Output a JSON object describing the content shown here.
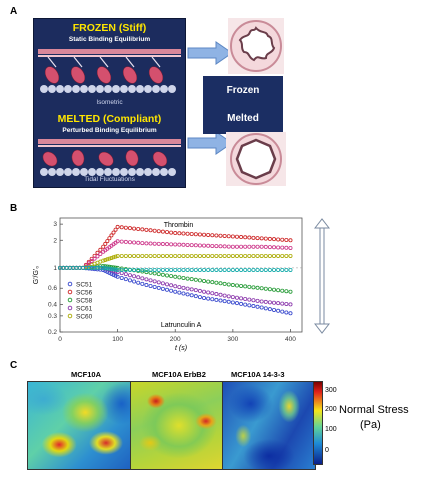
{
  "panels": {
    "a": "A",
    "b": "B",
    "c": "C"
  },
  "panelA": {
    "frozen_title": "FROZEN (Stiff)",
    "frozen_subtitle": "Static Binding Equilibrium",
    "frozen_caption": "Isometric",
    "melted_title": "MELTED (Compliant)",
    "melted_subtitle": "Perturbed Binding Equilibrium",
    "melted_caption": "Tidal Fluctuations",
    "frozen_box": "Frozen",
    "melted_box": "Melted",
    "colors": {
      "panel_bg": "#1c2c5e",
      "title": "#ffe600",
      "arrow": "#8fb3e4"
    }
  },
  "chart_data": {
    "type": "scatter",
    "xlabel": "t (s)",
    "ylabel": "G'/G'₀",
    "xlim": [
      0,
      420
    ],
    "ylim": [
      0.2,
      3.5
    ],
    "log_y": true,
    "xticks": [
      0,
      100,
      200,
      300,
      400
    ],
    "yticks": [
      0.2,
      0.3,
      0.4,
      0.6,
      1,
      2,
      3
    ],
    "annotations": [
      "Thrombin",
      "Latrunculin A"
    ],
    "legend_placement": "bottom-left",
    "series": [
      {
        "name": "SC51",
        "color": "#3344cc",
        "x": [
          0,
          40,
          75,
          100,
          150,
          200,
          250,
          300,
          350,
          400
        ],
        "y": [
          1.0,
          1.0,
          0.95,
          0.8,
          0.65,
          0.55,
          0.47,
          0.42,
          0.37,
          0.32
        ]
      },
      {
        "name": "SC56",
        "color": "#cc2222",
        "x": [
          0,
          40,
          75,
          100,
          150,
          200,
          250,
          300,
          350,
          400
        ],
        "y": [
          1.0,
          1.0,
          1.7,
          2.8,
          2.6,
          2.4,
          2.3,
          2.2,
          2.1,
          2.0
        ]
      },
      {
        "name": "SC58",
        "color": "#229933",
        "x": [
          0,
          40,
          75,
          100,
          150,
          200,
          250,
          300,
          350,
          400
        ],
        "y": [
          1.0,
          1.0,
          1.05,
          1.0,
          0.9,
          0.8,
          0.72,
          0.65,
          0.6,
          0.55
        ]
      },
      {
        "name": "SC61",
        "color": "#8833aa",
        "x": [
          0,
          40,
          75,
          100,
          150,
          200,
          250,
          300,
          350,
          400
        ],
        "y": [
          1.0,
          1.0,
          1.0,
          0.9,
          0.75,
          0.63,
          0.55,
          0.48,
          0.43,
          0.4
        ]
      },
      {
        "name": "SC60",
        "color": "#aaaa00",
        "x": [
          0,
          40,
          75,
          100,
          150,
          200,
          250,
          300,
          350,
          400
        ],
        "y": [
          1.0,
          1.0,
          1.2,
          1.35,
          1.35,
          1.35,
          1.35,
          1.35,
          1.35,
          1.35
        ]
      }
    ],
    "extra_series": [
      {
        "color": "#cc3388",
        "x": [
          0,
          40,
          75,
          100,
          150,
          200,
          250,
          300,
          350,
          400
        ],
        "y": [
          1.0,
          1.0,
          1.5,
          1.95,
          1.85,
          1.8,
          1.75,
          1.7,
          1.7,
          1.65
        ]
      },
      {
        "color": "#11aaaa",
        "x": [
          0,
          40,
          75,
          100,
          150,
          200,
          250,
          300,
          350,
          400
        ],
        "y": [
          1.0,
          1.0,
          1.0,
          0.95,
          0.95,
          0.95,
          0.95,
          0.95,
          0.95,
          0.95
        ]
      }
    ]
  },
  "panelC": {
    "titles": [
      "MCF10A",
      "MCF10A ErbB2",
      "MCF10A 14-3-3"
    ],
    "colorbar_ticks": [
      "300",
      "200",
      "100",
      "0"
    ],
    "colorbar_label": [
      "Normal Stress",
      "(Pa)"
    ]
  }
}
